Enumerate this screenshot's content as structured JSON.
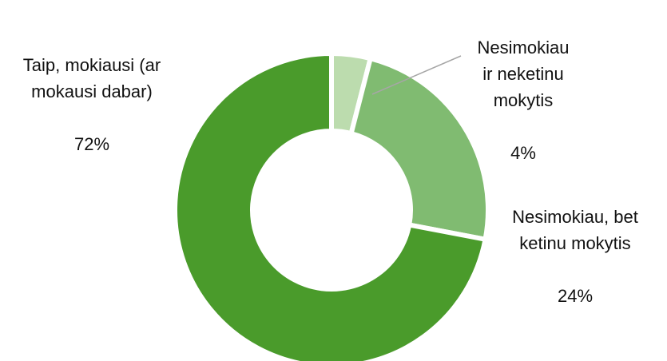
{
  "chart_data": {
    "type": "donut",
    "categories": [
      "Nesimokiau\nir neketinu\nmokytis",
      "Nesimokiau, bet\nketinu mokytis",
      "Taip, mokiausi (ar\nmokausi dabar)"
    ],
    "values": [
      4,
      24,
      72
    ],
    "value_labels": [
      "4%",
      "24%",
      "72%"
    ],
    "colors": [
      "#bcdcae",
      "#80bb71",
      "#4a9b2b"
    ]
  }
}
